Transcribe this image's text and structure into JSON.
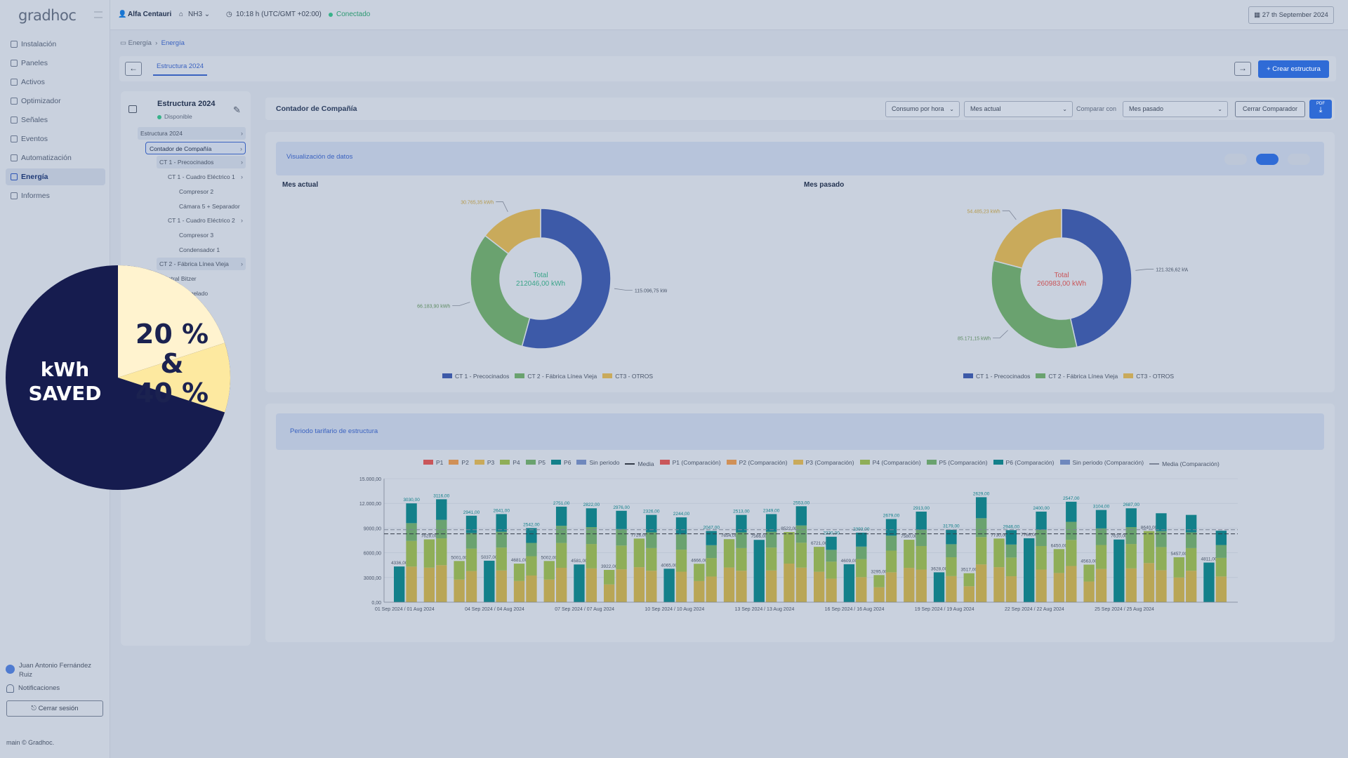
{
  "app": {
    "logo_text": "gradhoc",
    "version": "main © Gradhoc."
  },
  "topbar": {
    "user": "Alfa Centauri",
    "site": "NH3",
    "time": "10:18 h (UTC/GMT +02:00)",
    "status": "Conectado",
    "date": "27 th September 2024"
  },
  "sidebar": {
    "items": [
      {
        "label": "Instalación",
        "icon": "building-icon"
      },
      {
        "label": "Paneles",
        "icon": "chart-line-icon"
      },
      {
        "label": "Activos",
        "icon": "list-icon"
      },
      {
        "label": "Optimizador",
        "icon": "sliders-icon"
      },
      {
        "label": "Señales",
        "icon": "signal-icon"
      },
      {
        "label": "Eventos",
        "icon": "events-icon"
      },
      {
        "label": "Automatización",
        "icon": "automation-icon"
      },
      {
        "label": "Energía",
        "icon": "bolt-icon",
        "active": true
      },
      {
        "label": "Informes",
        "icon": "report-icon"
      }
    ],
    "user_name": "Juan Antonio Fernández Ruiz",
    "notifications": "Notificaciones",
    "logout": "Cerrar sesión"
  },
  "breadcrumb": {
    "root": "Energía",
    "current": "Energía"
  },
  "tabs": {
    "active": "Estructura 2024",
    "create_button": "+ Crear estructura"
  },
  "tree": {
    "title": "Estructura 2024",
    "status": "Disponible",
    "items": [
      {
        "label": "Estructura 2024",
        "level": 0,
        "chevron": true
      },
      {
        "label": "Contador de Compañía",
        "level": 1,
        "chevron": true,
        "selected": true
      },
      {
        "label": "CT 1 - Precocinados",
        "level": 2,
        "chevron": true
      },
      {
        "label": "CT 1 - Cuadro Eléctrico 1",
        "level": 3,
        "chevron": true
      },
      {
        "label": "Compresor 2",
        "level": 4
      },
      {
        "label": "Cámara 5 + Separador",
        "level": 4
      },
      {
        "label": "CT 1 - Cuadro Eléctrico 2",
        "level": 3,
        "chevron": true
      },
      {
        "label": "Compresor 3",
        "level": 4
      },
      {
        "label": "Condensador 1",
        "level": 4
      },
      {
        "label": "CT 2 - Fábrica Línea Vieja",
        "level": 2,
        "chevron": true
      },
      {
        "label": "ntral Bitzer",
        "level": 3
      },
      {
        "label": "Congelado",
        "level": 4
      },
      {
        "label": "os",
        "level": 4
      }
    ]
  },
  "header": {
    "title": "Contador de Compañía",
    "consumption_select": "Consumo por hora",
    "period_select": "Mes actual",
    "compare_label": "Comparar con",
    "compare_select": "Mes pasado",
    "close_compare": "Cerrar Comparador",
    "export_label": "PDF"
  },
  "visualization": {
    "banner": "Visualización de datos"
  },
  "donuts": [
    {
      "title": "Mes actual",
      "center_label": "Total",
      "center_value": "212046,00 kWh",
      "center_color": "#3ba58a",
      "slices": [
        {
          "name": "CT 1 - Precocinados",
          "value": 115096.75,
          "label": "115.096,75 kWh",
          "color": "#3d5aa8"
        },
        {
          "name": "CT 2 - Fábrica Línea Vieja",
          "value": 66183.9,
          "label": "66.183,90 kWh",
          "color": "#6aa26f"
        },
        {
          "name": "CT3 - OTROS",
          "value": 30765.35,
          "label": "30.765,35 kWh",
          "color": "#c9aa5b"
        }
      ]
    },
    {
      "title": "Mes pasado",
      "center_label": "Total",
      "center_value": "260983,00 kWh",
      "center_color": "#c9565a",
      "slices": [
        {
          "name": "CT 1 - Precocinados",
          "value": 121326.62,
          "label": "121.326,62 kWh",
          "color": "#3d5aa8"
        },
        {
          "name": "CT 2 - Fábrica Línea Vieja",
          "value": 85171.15,
          "label": "85.171,15 kWh",
          "color": "#6aa26f"
        },
        {
          "name": "CT3 - OTROS",
          "value": 54485.23,
          "label": "54.485,23 kWh",
          "color": "#c9aa5b"
        }
      ]
    }
  ],
  "tariff": {
    "banner": "Periodo tarifario de estructura",
    "legend": [
      {
        "name": "P1",
        "color": "#c9565a",
        "type": "box"
      },
      {
        "name": "P2",
        "color": "#d09057",
        "type": "box"
      },
      {
        "name": "P3",
        "color": "#c9aa5b",
        "type": "box"
      },
      {
        "name": "P4",
        "color": "#8fae58",
        "type": "box"
      },
      {
        "name": "P5",
        "color": "#6aa26f",
        "type": "box"
      },
      {
        "name": "P6",
        "color": "#13808a",
        "type": "box"
      },
      {
        "name": "Sin periodo",
        "color": "#6f88bd",
        "type": "box"
      },
      {
        "name": "Media",
        "color": "#333b48",
        "type": "line"
      },
      {
        "name": "P1 (Comparación)",
        "color": "#c9565a",
        "type": "box"
      },
      {
        "name": "P2 (Comparación)",
        "color": "#d09057",
        "type": "box"
      },
      {
        "name": "P3 (Comparación)",
        "color": "#c9aa5b",
        "type": "box"
      },
      {
        "name": "P4 (Comparación)",
        "color": "#8fae58",
        "type": "box"
      },
      {
        "name": "P5 (Comparación)",
        "color": "#6aa26f",
        "type": "box"
      },
      {
        "name": "P6 (Comparación)",
        "color": "#13808a",
        "type": "box"
      },
      {
        "name": "Sin periodo (Comparación)",
        "color": "#6f88bd",
        "type": "box"
      },
      {
        "name": "Media (Comparación)",
        "color": "#7b8496",
        "type": "line"
      }
    ]
  },
  "chart_data": {
    "type": "bar",
    "ylim": [
      0,
      15000
    ],
    "yticks": [
      "0,00",
      "3000,00",
      "6000,00",
      "9000,00",
      "12.000,00",
      "15.000,00"
    ],
    "xtick_labels": [
      "01 Sep 2024 / 01 Aug 2024",
      "04 Sep 2024 / 04 Aug 2024",
      "07 Sep 2024 / 07 Aug 2024",
      "10 Sep 2024 / 10 Aug 2024",
      "13 Sep 2024 / 13 Aug 2024",
      "16 Sep 2024 / 16 Aug 2024",
      "19 Sep 2024 / 19 Aug 2024",
      "22 Sep 2024 / 22 Aug 2024",
      "25 Sep 2024 / 25 Aug 2024"
    ],
    "series": [
      {
        "name": "Mes actual",
        "values": [
          4336,
          7628,
          5001,
          5037,
          4681,
          5002,
          4581,
          3922,
          7726,
          4065,
          4666,
          7654,
          7566,
          8522,
          6721,
          4609,
          3295,
          7580,
          3628,
          3517,
          7730,
          7766,
          6450,
          4563,
          7610,
          8640,
          5457,
          4811
        ]
      },
      {
        "name": "Mes pasado",
        "values": [
          12000,
          12500,
          10500,
          10700,
          9000,
          11600,
          11400,
          11100,
          10600,
          10300,
          8650,
          10600,
          10700,
          11650,
          7950,
          8440,
          10100,
          11000,
          8800,
          12750,
          8750,
          11000,
          12200,
          11200,
          11400,
          10800,
          10600,
          8680
        ]
      }
    ],
    "media": 8300,
    "media_comparacion": 8800,
    "top_labels": [
      "3030,00",
      "3116,00",
      "2941,00",
      "2641,00",
      "2542,00",
      "2751,00",
      "2822,00",
      "2976,00",
      "2326,00",
      "2244,00",
      "2047,00",
      "2513,00",
      "2349,00",
      "2553,00",
      "2330,00",
      "2393,00",
      "2679,00",
      "2913,00",
      "3179,00",
      "2629,00",
      "2946,00",
      "2400,00",
      "2547,00",
      "3104,00",
      "2687,00"
    ]
  },
  "promo": {
    "left_line1": "kWh",
    "left_line2": "SAVED",
    "right_line1": "20 %",
    "right_line2": "&",
    "right_line3": "40 %",
    "dark_color": "#161c4f",
    "light_color": "#fff3cf",
    "yellow_color": "#fde9a0",
    "slices": [
      {
        "name": "kWh SAVED",
        "value": 70
      },
      {
        "name": "20 %",
        "value": 20
      },
      {
        "name": "40 %",
        "value": 10
      }
    ]
  }
}
